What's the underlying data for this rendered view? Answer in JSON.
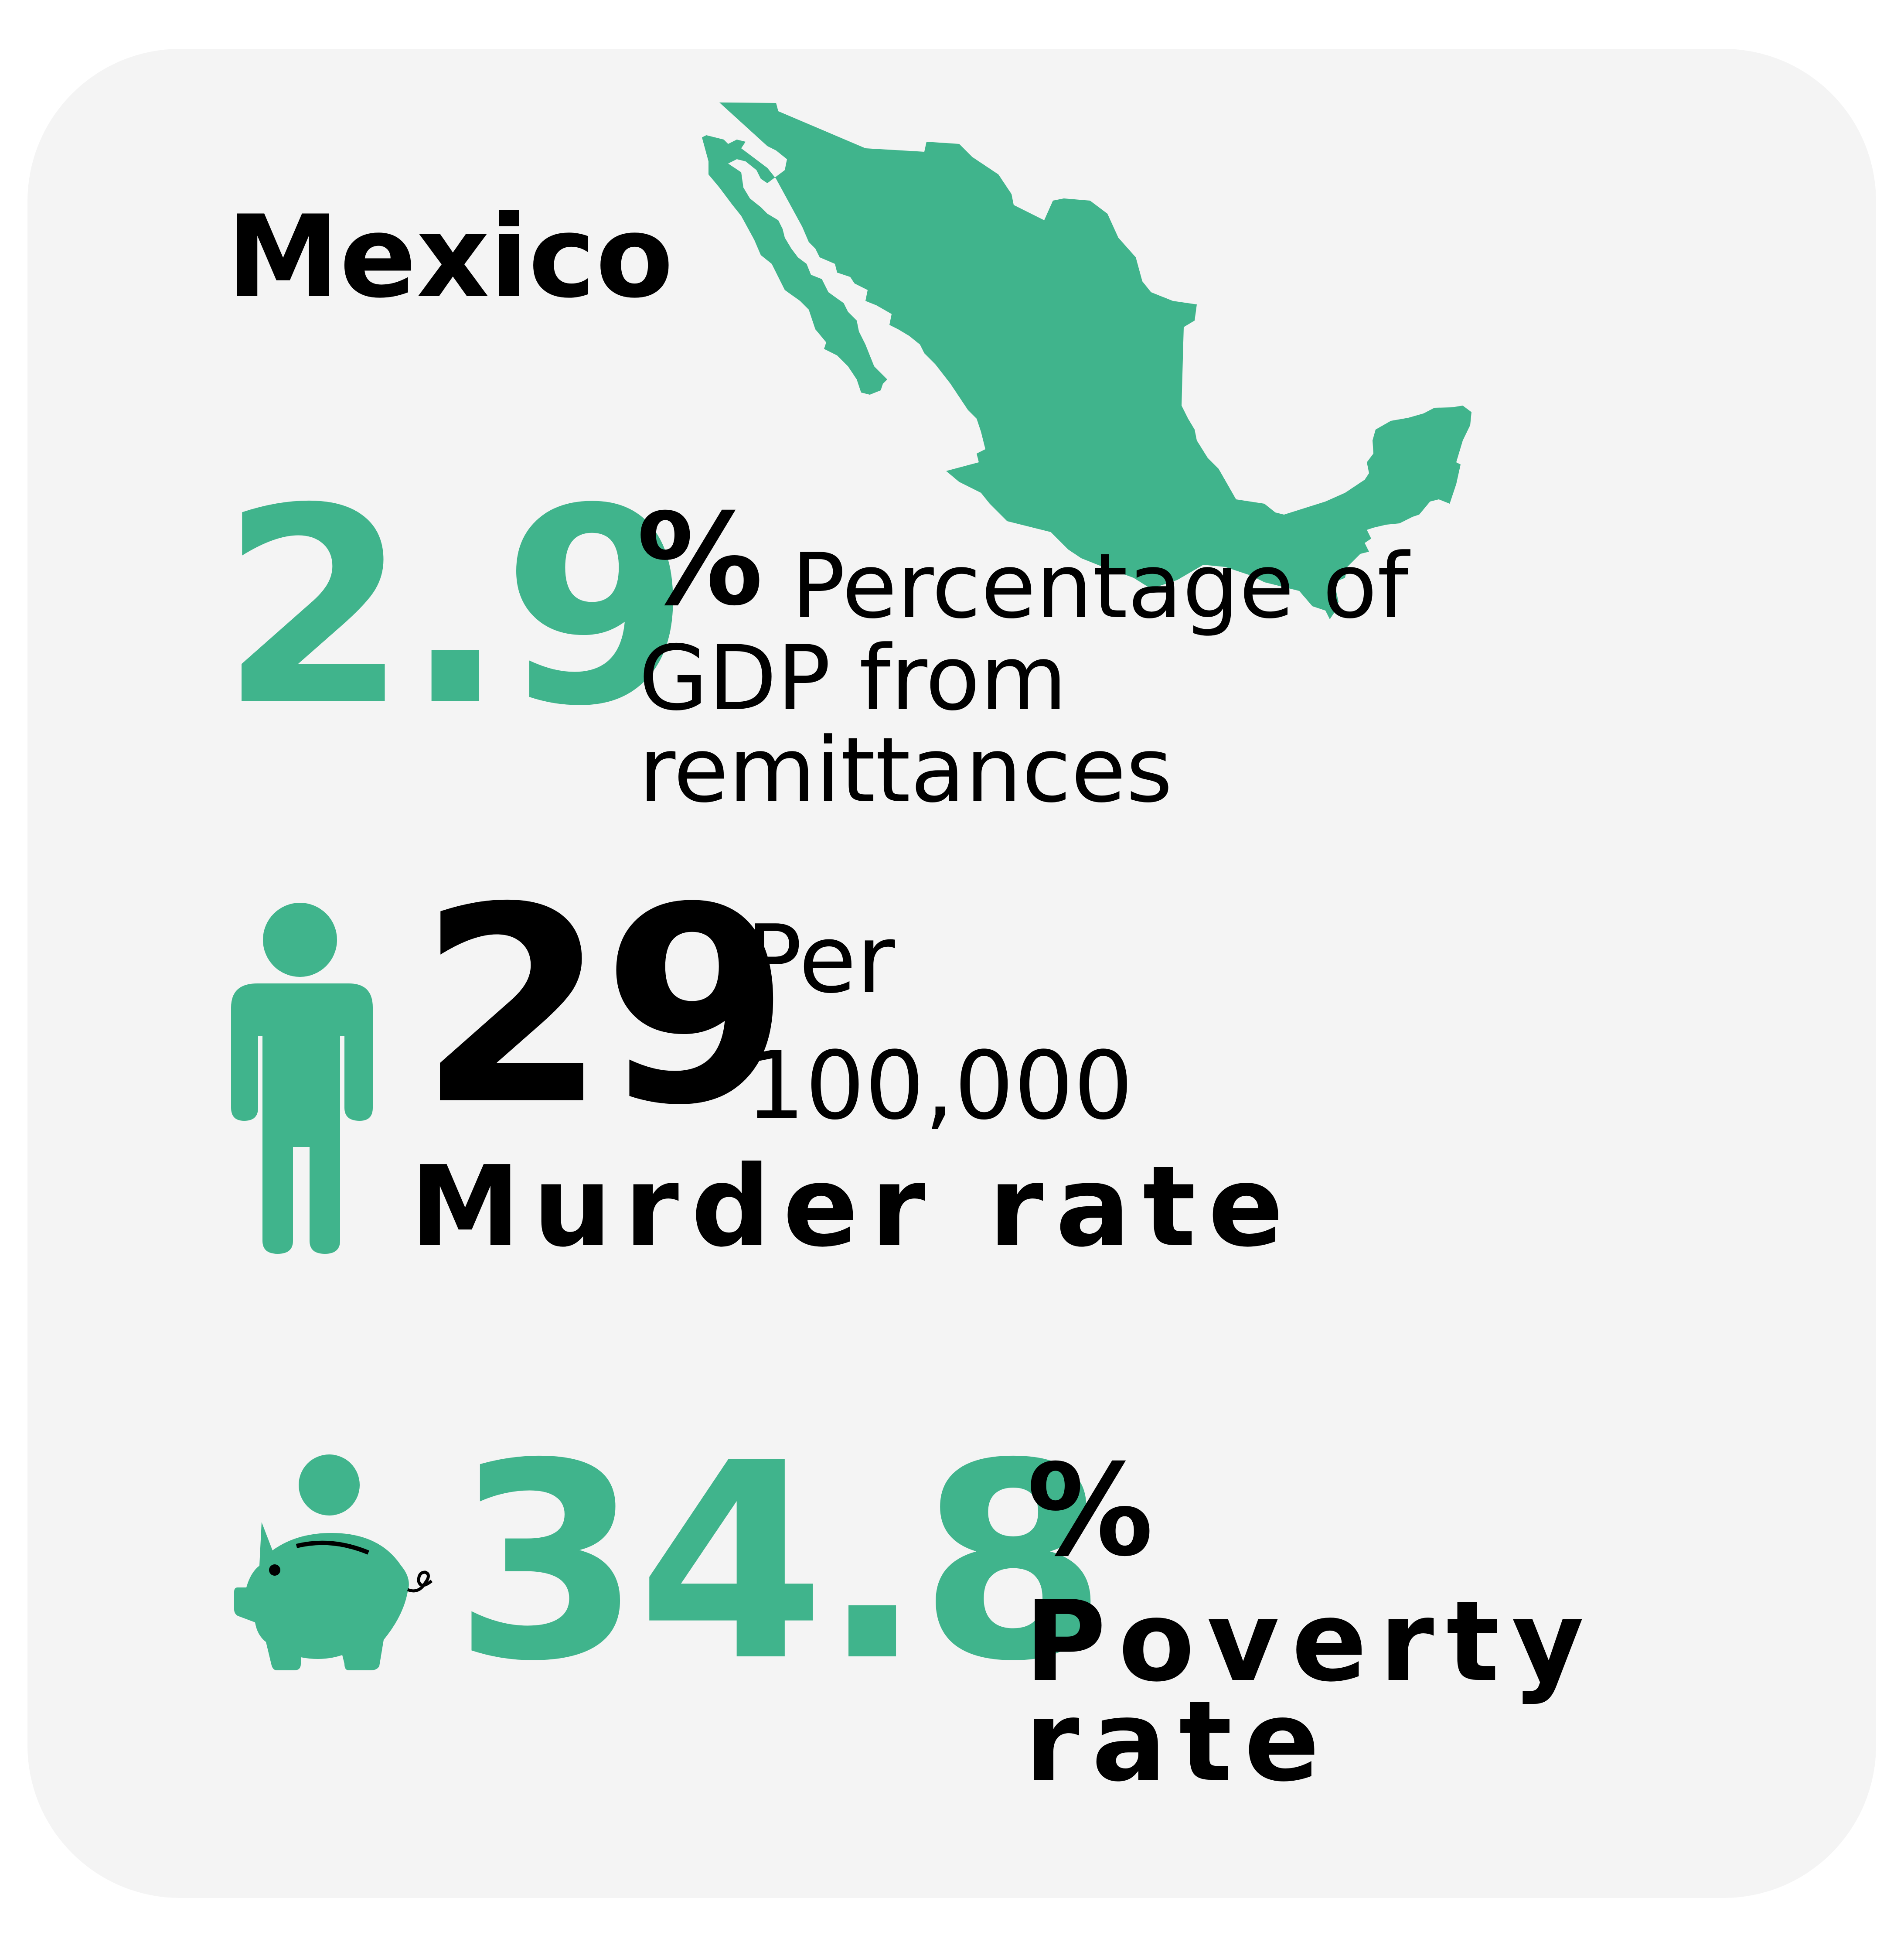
{
  "title": "Mexico",
  "colors": {
    "accent": "#40b48c",
    "text": "#000000",
    "card": "#f4f4f4"
  },
  "stats": [
    {
      "value": "2.9",
      "unit_symbol": "%",
      "label": "Percentage of GDP from remittances",
      "icon": "mexico-map-icon"
    },
    {
      "value": "29",
      "unit": "Per 100,000",
      "label": "Murder rate",
      "icon": "person-icon"
    },
    {
      "value": "34.8",
      "unit_symbol": "%",
      "label": "Poverty rate",
      "icon": "piggy-bank-icon"
    }
  ]
}
